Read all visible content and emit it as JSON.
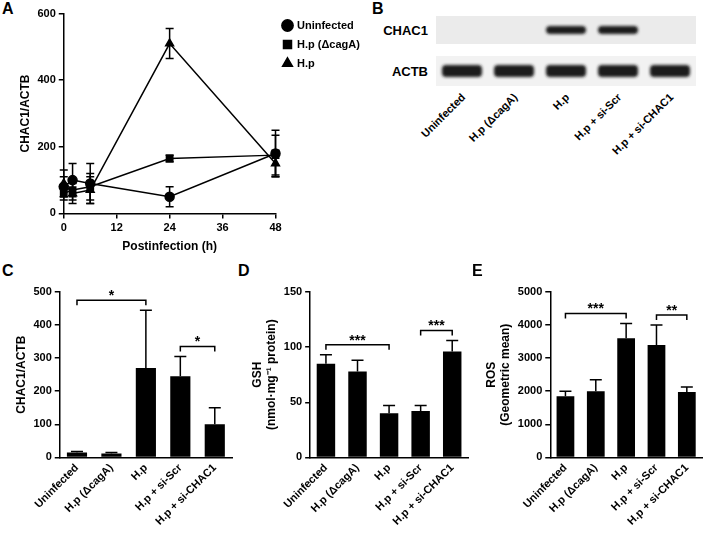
{
  "chart_data": [
    {
      "panel": "A",
      "type": "line",
      "x_label": "Postinfection (h)",
      "y_label": "CHAC1/ACTB",
      "x": [
        0,
        2,
        6,
        24,
        48
      ],
      "series": [
        {
          "name": "Uninfected",
          "color": "#000000",
          "marker": "circle",
          "values": [
            80,
            100,
            90,
            50,
            180
          ],
          "errors": [
            30,
            50,
            60,
            30,
            70
          ]
        },
        {
          "name": "H.p (ΔcagA)",
          "color": "#000000",
          "marker": "square",
          "values": [
            60,
            70,
            80,
            165,
            175
          ],
          "errors": [
            20,
            30,
            40,
            10,
            60
          ]
        },
        {
          "name": "H.p",
          "color": "#000000",
          "marker": "triangle",
          "values": [
            90,
            60,
            70,
            510,
            150
          ],
          "errors": [
            40,
            30,
            40,
            45,
            40
          ]
        }
      ],
      "xlim": [
        0,
        48
      ],
      "xticks": [
        0,
        12,
        24,
        36,
        48
      ],
      "ylim": [
        0,
        600
      ],
      "yticks": [
        0,
        200,
        400,
        600
      ],
      "grid": false,
      "legend": "upper right"
    },
    {
      "panel": "C",
      "type": "bar",
      "y_label": "CHAC1/ACTB",
      "categories": [
        "Uninfected",
        "H.p (ΔcagA)",
        "H.p",
        "H.p + si-Scr",
        "H.p + si-CHAC1"
      ],
      "values": [
        15,
        12,
        270,
        245,
        100
      ],
      "errors": [
        3,
        3,
        175,
        60,
        50
      ],
      "color": "#000000",
      "ylim": [
        0,
        500
      ],
      "yticks": [
        0,
        100,
        200,
        300,
        400,
        500
      ],
      "grid": false,
      "annotations": [
        {
          "from": 0,
          "to": 2,
          "label": "*"
        },
        {
          "from": 3,
          "to": 4,
          "label": "*"
        }
      ]
    },
    {
      "panel": "D",
      "type": "bar",
      "y_label": [
        "GSH",
        "(nmol·mg⁻¹ protein)"
      ],
      "categories": [
        "Uninfected",
        "H.p (ΔcagA)",
        "H.p",
        "H.p + si-Scr",
        "H.p + si-CHAC1"
      ],
      "values": [
        85,
        78,
        40,
        42,
        96
      ],
      "errors": [
        8,
        10,
        7,
        5,
        10
      ],
      "color": "#000000",
      "ylim": [
        0,
        150
      ],
      "yticks": [
        0,
        50,
        100,
        150
      ],
      "grid": false,
      "annotations": [
        {
          "from": 0,
          "to": 2,
          "label": "***"
        },
        {
          "from": 3,
          "to": 4,
          "label": "***"
        }
      ]
    },
    {
      "panel": "E",
      "type": "bar",
      "y_label": [
        "ROS",
        "(Geometric mean)"
      ],
      "categories": [
        "Uninfected",
        "H.p (ΔcagA)",
        "H.p",
        "H.p + si-Scr",
        "H.p + si-CHAC1"
      ],
      "values": [
        1850,
        2000,
        3600,
        3400,
        1980
      ],
      "errors": [
        150,
        350,
        450,
        600,
        150
      ],
      "color": "#000000",
      "ylim": [
        0,
        5000
      ],
      "yticks": [
        0,
        1000,
        2000,
        3000,
        4000,
        5000
      ],
      "grid": false,
      "annotations": [
        {
          "from": 0,
          "to": 2,
          "label": "***"
        },
        {
          "from": 3,
          "to": 4,
          "label": "**"
        }
      ]
    }
  ],
  "blot": {
    "panel": "B",
    "lanes": [
      "Uninfected",
      "H.p (ΔcagA)",
      "H.p",
      "H.p + si-Scr",
      "H.p + si-CHAC1"
    ],
    "rows": [
      {
        "label": "CHAC1",
        "bands": [
          false,
          false,
          true,
          true,
          false
        ]
      },
      {
        "label": "ACTB",
        "bands": [
          true,
          true,
          true,
          true,
          true
        ]
      }
    ]
  }
}
